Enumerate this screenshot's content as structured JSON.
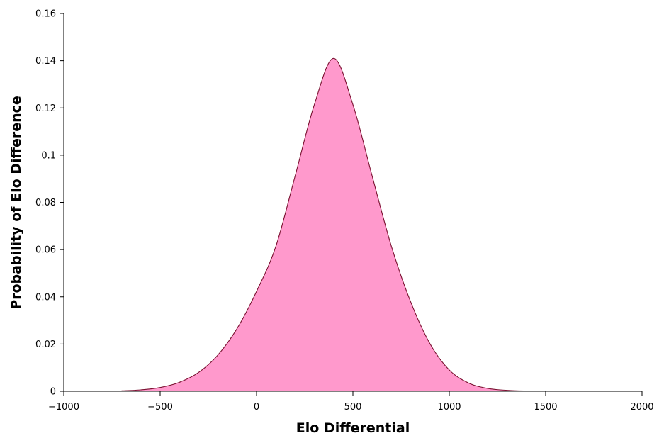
{
  "chart_data": {
    "type": "area",
    "title": "",
    "xlabel": "Elo Differential",
    "ylabel": "Probability of Elo Difference",
    "xlim": [
      -1000,
      2000
    ],
    "ylim": [
      0,
      0.16
    ],
    "xticks": [
      -1000,
      -500,
      0,
      500,
      1000,
      1500,
      2000
    ],
    "xtick_labels": [
      "−1000",
      "−500",
      "0",
      "500",
      "1000",
      "1500",
      "2000"
    ],
    "yticks": [
      0,
      0.02,
      0.04,
      0.06,
      0.08,
      0.1,
      0.12,
      0.14,
      0.16
    ],
    "ytick_labels": [
      "0",
      "0.02",
      "0.04",
      "0.06",
      "0.08",
      "0.1",
      "0.12",
      "0.14",
      "0.16"
    ],
    "grid": false,
    "series": [
      {
        "fill_color": "#ff99cc",
        "line_color": "#7a1030",
        "x": [
          -700,
          -600,
          -500,
          -400,
          -300,
          -200,
          -100,
          0,
          100,
          200,
          300,
          400,
          500,
          600,
          700,
          800,
          900,
          1000,
          1100,
          1200,
          1300,
          1400,
          1500,
          1600,
          1700
        ],
        "y": [
          0.0002,
          0.0006,
          0.0016,
          0.0038,
          0.008,
          0.0154,
          0.0267,
          0.0423,
          0.0613,
          0.0911,
          0.1214,
          0.141,
          0.1214,
          0.0911,
          0.0613,
          0.0378,
          0.0201,
          0.009,
          0.0035,
          0.0012,
          0.0004,
          0.0001,
          0.0,
          0.0,
          0.0
        ]
      }
    ]
  }
}
